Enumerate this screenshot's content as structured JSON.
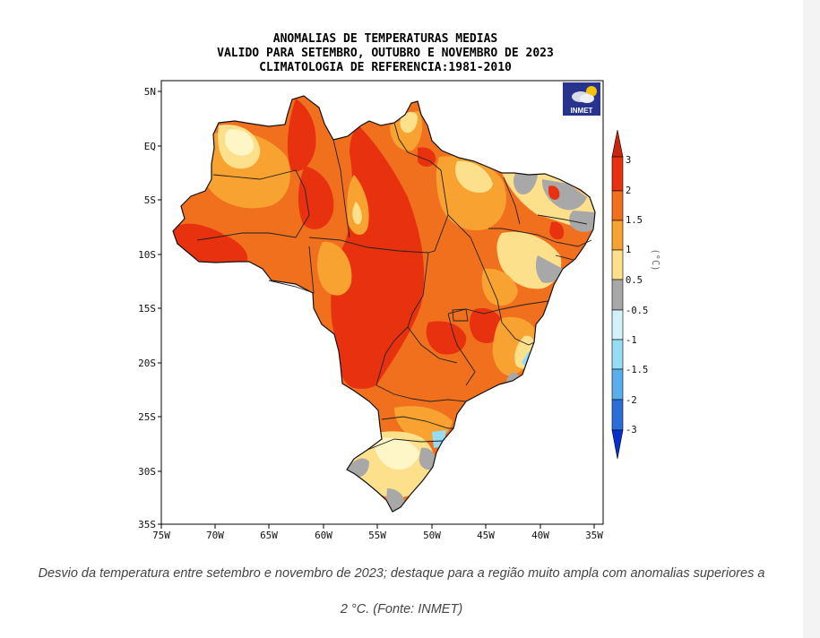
{
  "map": {
    "title_lines": [
      "ANOMALIAS DE TEMPERATURAS MEDIAS",
      "VALIDO PARA SETEMBRO, OUTUBRO E NOVEMBRO DE 2023",
      "CLIMATOLOGIA DE REFERENCIA:1981-2010"
    ],
    "lat_labels": [
      "5N",
      "EQ",
      "5S",
      "10S",
      "15S",
      "20S",
      "25S",
      "30S",
      "35S"
    ],
    "lon_labels": [
      "75W",
      "70W",
      "65W",
      "60W",
      "55W",
      "50W",
      "45W",
      "40W",
      "35W"
    ],
    "logo_text": "INMET",
    "colorbar": {
      "unit": "(°C)",
      "labels": [
        "3",
        "2",
        "1.5",
        "1",
        "0.5",
        "-0.5",
        "-1",
        "-1.5",
        "-2",
        "-3"
      ],
      "colors": [
        "#e8320f",
        "#f0701e",
        "#f8a232",
        "#fde08c",
        "#fff6c8",
        "#a8a8a8",
        "#d2f2fb",
        "#96dcf5",
        "#5aaeea",
        "#2a6fd9",
        "#0a2fd0"
      ]
    },
    "colors": {
      "deep_orange": "#e8320f",
      "orange": "#f0701e",
      "light_orange": "#f8a232",
      "yellow": "#fde08c",
      "pale_yellow": "#fff6c8",
      "gray": "#a8a8a8",
      "light_blue": "#96dcf5"
    }
  },
  "caption": {
    "line1": "Desvio da temperatura entre setembro e novembro de 2023; destaque para a região muito ampla com anomalias superiores a",
    "line2": "2 °C. (Fonte: INMET)"
  }
}
